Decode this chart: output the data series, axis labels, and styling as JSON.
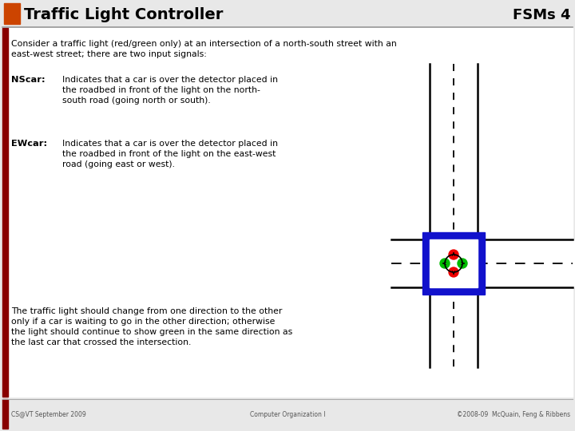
{
  "title": "Traffic Light Controller",
  "fsm_label": "FSMs 4",
  "slide_bg": "#e8e8e8",
  "content_bg": "#ffffff",
  "title_color": "#000000",
  "text_color": "#000000",
  "intro_text1": "Consider a traffic light (red/green only) at an intersection of a north-south street with an",
  "intro_text2": "east-west street; there are two input signals:",
  "nscar_label": "NScar:",
  "nscar_line1": "Indicates that a car is over the detector placed in",
  "nscar_line2": "the roadbed in front of the light on the north-",
  "nscar_line3": "south road (going north or south).",
  "ewcar_label": "EWcar:",
  "ewcar_line1": "Indicates that a car is over the detector placed in",
  "ewcar_line2": "the roadbed in front of the light on the east-west",
  "ewcar_line3": "road (going east or west).",
  "bottom_line1": "The traffic light should change from one direction to the other",
  "bottom_line2": "only if a car is waiting to go in the other direction; otherwise",
  "bottom_line3": "the light should continue to show green in the same direction as",
  "bottom_line4": "the last car that crossed the intersection.",
  "footer_left": "CS@VT September 2009",
  "footer_center": "Computer Organization I",
  "footer_right": "©2008-09  McQuain, Feng & Ribbens",
  "orange_color": "#cc4400",
  "dark_red_bar": "#880000",
  "blue_color": "#1111cc",
  "red_light": "#ee0000",
  "green_light": "#00bb00",
  "road_line_color": "#000000",
  "intersection_fill": "#ffffff"
}
